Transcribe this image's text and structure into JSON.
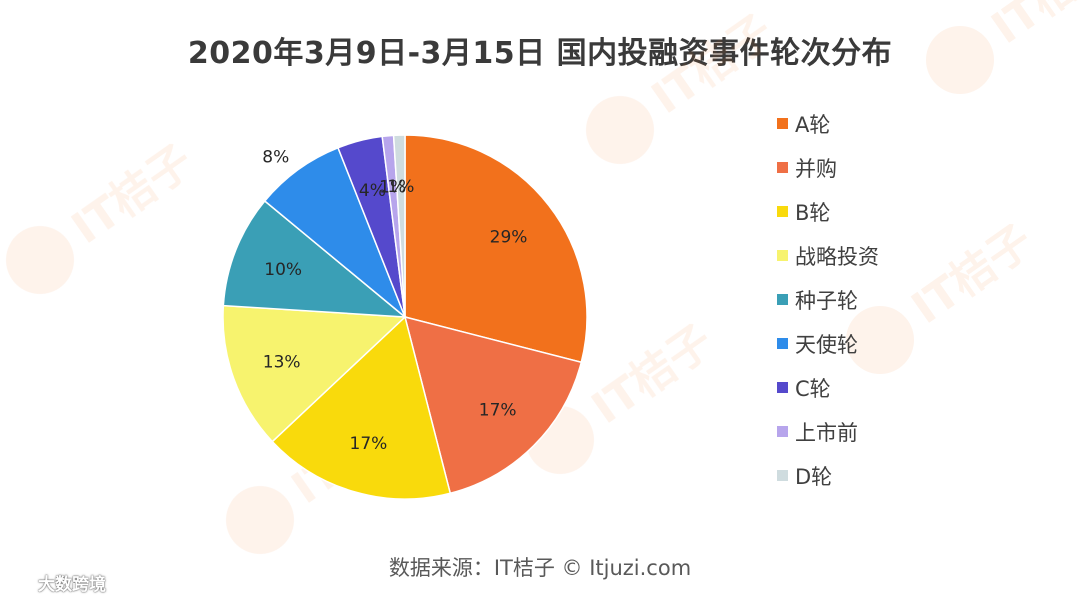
{
  "title": "2020年3月9日-3月15日 国内投融资事件轮次分布",
  "source": "数据来源：IT桔子 © Itjuzi.com",
  "watermark_text": "IT桔子",
  "badge_text": "大数跨境",
  "chart_data": {
    "type": "pie",
    "title": "2020年3月9日-3月15日 国内投融资事件轮次分布",
    "legend_position": "right",
    "slices": [
      {
        "label": "A轮",
        "value": 29,
        "display": "29%",
        "color": "#F2711C"
      },
      {
        "label": "并购",
        "value": 17,
        "display": "17%",
        "color": "#EF6F45"
      },
      {
        "label": "B轮",
        "value": 17,
        "display": "17%",
        "color": "#F9DA0C"
      },
      {
        "label": "战略投资",
        "value": 13,
        "display": "13%",
        "color": "#F7F36E"
      },
      {
        "label": "种子轮",
        "value": 10,
        "display": "10%",
        "color": "#3A9FB6"
      },
      {
        "label": "天使轮",
        "value": 8,
        "display": "8%",
        "color": "#2E8CEA"
      },
      {
        "label": "C轮",
        "value": 4,
        "display": "4%",
        "color": "#5549CC"
      },
      {
        "label": "上市前",
        "value": 1,
        "display": "1%",
        "color": "#B7A5EC"
      },
      {
        "label": "D轮",
        "value": 1,
        "display": "1%",
        "color": "#CFDCDF"
      }
    ]
  }
}
